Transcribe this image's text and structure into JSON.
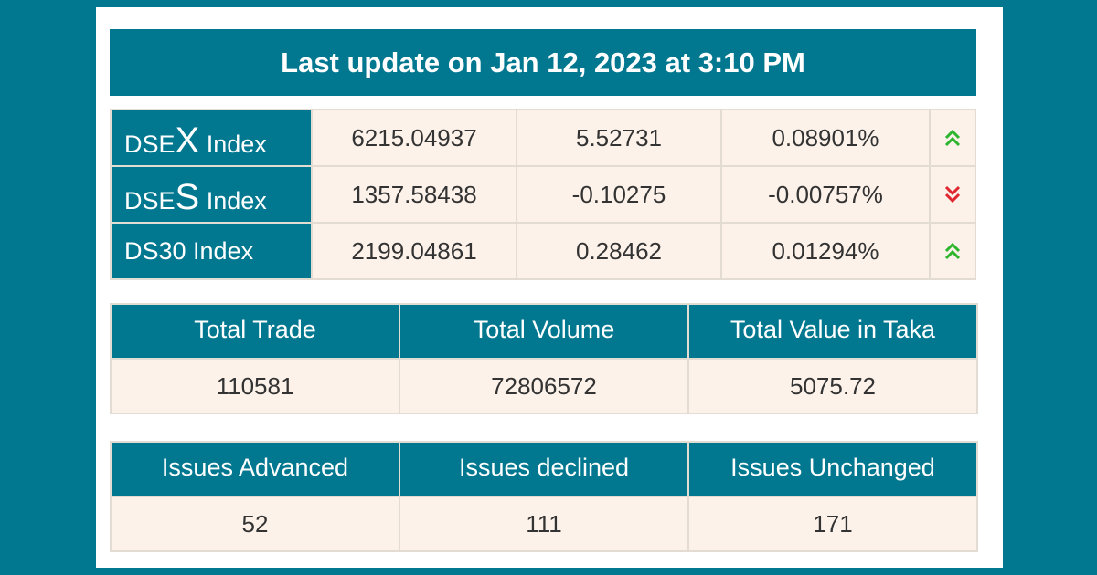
{
  "header": {
    "last_update": "Last update on Jan 12, 2023 at 3:10 PM"
  },
  "indices": [
    {
      "name_prefix": "DSE",
      "name_big": "X",
      "name_suffix": " Index",
      "value": "6215.04937",
      "change": "5.52731",
      "percent": "0.08901%",
      "direction": "up",
      "direction_icon": "double-chevron-up-icon",
      "direction_color": "#2db52d"
    },
    {
      "name_prefix": "DSE",
      "name_big": "S",
      "name_suffix": " Index",
      "value": "1357.58438",
      "change": "-0.10275",
      "percent": "-0.00757%",
      "direction": "down",
      "direction_icon": "double-chevron-down-icon",
      "direction_color": "#e0262e"
    },
    {
      "name_prefix": "DS30 Index",
      "name_big": "",
      "name_suffix": "",
      "value": "2199.04861",
      "change": "0.28462",
      "percent": "0.01294%",
      "direction": "up",
      "direction_icon": "double-chevron-up-icon",
      "direction_color": "#2db52d"
    }
  ],
  "trade_summary": {
    "headers": [
      "Total Trade",
      "Total Volume",
      "Total Value in Taka"
    ],
    "values": [
      "110581",
      "72806572",
      "5075.72"
    ]
  },
  "issues_summary": {
    "headers": [
      "Issues Advanced",
      "Issues declined",
      "Issues Unchanged"
    ],
    "values": [
      "52",
      "111",
      "171"
    ]
  },
  "colors": {
    "primary": "#027890",
    "cell_background": "#fcf2ea",
    "up": "#2db52d",
    "down": "#e0262e"
  }
}
